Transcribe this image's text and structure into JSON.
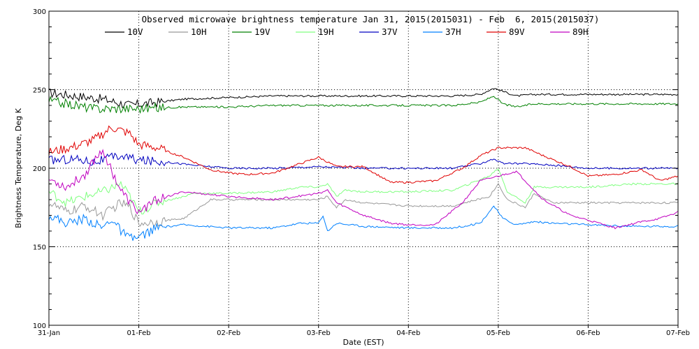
{
  "chart_data": {
    "type": "line",
    "title": "Observed microwave brightness temperature Jan 31, 2015(2015031) - Feb  6, 2015(2015037)",
    "xlabel": "Date (EST)",
    "ylabel": "Brightness Temperature, Deg K",
    "xlim": [
      0,
      7
    ],
    "ylim": [
      100,
      300
    ],
    "x_tick_labels": [
      "31-Jan",
      "01-Feb",
      "02-Feb",
      "03-Feb",
      "04-Feb",
      "05-Feb",
      "06-Feb",
      "07-Feb"
    ],
    "y_ticks": [
      100,
      150,
      200,
      250,
      300
    ],
    "grid": "dotted at each day and at 150, 200, 250 K",
    "legend_position": "top",
    "x_unit_note": "x values are days since 31-Jan 00:00 EST",
    "series": [
      {
        "name": "10V",
        "color": "#000000",
        "x": [
          0,
          0.3,
          0.6,
          0.9,
          1.2,
          1.5,
          2,
          2.5,
          3,
          3.5,
          4,
          4.5,
          4.8,
          4.95,
          5.05,
          5.2,
          5.4,
          5.6,
          6,
          6.5,
          7
        ],
        "y": [
          248,
          246,
          244,
          240,
          242,
          244,
          245,
          246,
          246,
          246,
          246,
          246,
          247,
          251,
          249,
          246,
          247,
          247,
          247,
          247,
          247
        ]
      },
      {
        "name": "10H",
        "color": "#999999",
        "x": [
          0,
          0.2,
          0.4,
          0.6,
          0.8,
          0.9,
          1,
          1.2,
          1.5,
          1.6,
          1.8,
          2,
          2.5,
          3,
          3.1,
          3.2,
          3.3,
          3.5,
          4,
          4.5,
          4.9,
          5,
          5.1,
          5.3,
          5.4,
          5.6,
          6,
          6.5,
          7
        ],
        "y": [
          178,
          172,
          176,
          170,
          178,
          175,
          165,
          166,
          168,
          172,
          180,
          180,
          180,
          180,
          182,
          175,
          180,
          178,
          176,
          176,
          182,
          190,
          180,
          175,
          184,
          178,
          178,
          178,
          178
        ]
      },
      {
        "name": "19V",
        "color": "#008000",
        "x": [
          0,
          0.5,
          1,
          1.5,
          2,
          2.5,
          3,
          3.5,
          4,
          4.5,
          4.8,
          4.95,
          5.05,
          5.2,
          5.4,
          5.6,
          6,
          6.5,
          7
        ],
        "y": [
          243,
          238,
          238,
          239,
          239,
          240,
          240,
          240,
          240,
          240,
          242,
          246,
          241,
          239,
          241,
          241,
          241,
          241,
          241
        ]
      },
      {
        "name": "19H",
        "color": "#80ff80",
        "x": [
          0,
          0.2,
          0.4,
          0.6,
          0.8,
          0.9,
          1,
          1.2,
          1.5,
          1.6,
          2,
          2.5,
          2.8,
          3,
          3.1,
          3.2,
          3.3,
          3.5,
          4,
          4.5,
          4.9,
          5,
          5.1,
          5.3,
          5.4,
          5.6,
          6,
          6.5,
          7
        ],
        "y": [
          185,
          178,
          182,
          185,
          190,
          182,
          172,
          178,
          182,
          184,
          184,
          185,
          188,
          188,
          190,
          182,
          186,
          185,
          185,
          186,
          195,
          200,
          185,
          178,
          188,
          188,
          188,
          190,
          190
        ]
      },
      {
        "name": "37V",
        "color": "#0000c0",
        "x": [
          0,
          0.3,
          0.5,
          0.8,
          1,
          1.3,
          1.6,
          2,
          2.5,
          3,
          3.5,
          4,
          4.5,
          4.8,
          4.95,
          5.05,
          5.3,
          5.6,
          6,
          6.5,
          7
        ],
        "y": [
          205,
          206,
          204,
          208,
          205,
          204,
          202,
          200,
          200,
          201,
          200,
          200,
          200,
          203,
          206,
          203,
          203,
          202,
          200,
          200,
          200
        ]
      },
      {
        "name": "37H",
        "color": "#0080ff",
        "x": [
          0,
          0.2,
          0.4,
          0.6,
          0.7,
          0.8,
          0.9,
          1,
          1.2,
          1.5,
          2,
          2.5,
          2.8,
          3,
          3.05,
          3.1,
          3.2,
          3.5,
          4,
          4.5,
          4.8,
          4.95,
          5.05,
          5.2,
          5.4,
          5.6,
          6,
          6.5,
          7
        ],
        "y": [
          170,
          165,
          168,
          162,
          168,
          160,
          155,
          156,
          162,
          164,
          162,
          162,
          165,
          165,
          170,
          160,
          165,
          163,
          162,
          162,
          165,
          176,
          168,
          164,
          166,
          165,
          164,
          163,
          163
        ]
      },
      {
        "name": "89V",
        "color": "#e00000",
        "x": [
          0,
          0.3,
          0.5,
          0.7,
          0.9,
          1,
          1.2,
          1.5,
          1.8,
          2,
          2.2,
          2.5,
          2.8,
          3,
          3.1,
          3.2,
          3.5,
          3.8,
          4,
          4.3,
          4.6,
          4.8,
          5,
          5.3,
          5.5,
          5.8,
          6,
          6.3,
          6.6,
          6.8,
          7
        ],
        "y": [
          210,
          214,
          218,
          226,
          222,
          215,
          213,
          207,
          199,
          197,
          196,
          197,
          203,
          207,
          204,
          201,
          201,
          191,
          191,
          192,
          200,
          208,
          213,
          213,
          208,
          201,
          195,
          196,
          199,
          192,
          195
        ]
      },
      {
        "name": "89H",
        "color": "#c000c0",
        "x": [
          0,
          0.2,
          0.4,
          0.5,
          0.6,
          0.7,
          0.8,
          0.9,
          1,
          1.2,
          1.5,
          2,
          2.5,
          3,
          3.1,
          3.2,
          3.5,
          3.8,
          4,
          4.3,
          4.6,
          4.8,
          5,
          5.2,
          5.5,
          5.8,
          6,
          6.3,
          6.6,
          6.8,
          7
        ],
        "y": [
          193,
          188,
          196,
          205,
          212,
          198,
          186,
          178,
          172,
          180,
          185,
          182,
          180,
          184,
          186,
          178,
          170,
          165,
          164,
          164,
          178,
          192,
          195,
          198,
          180,
          170,
          167,
          162,
          166,
          168,
          172
        ]
      }
    ]
  }
}
